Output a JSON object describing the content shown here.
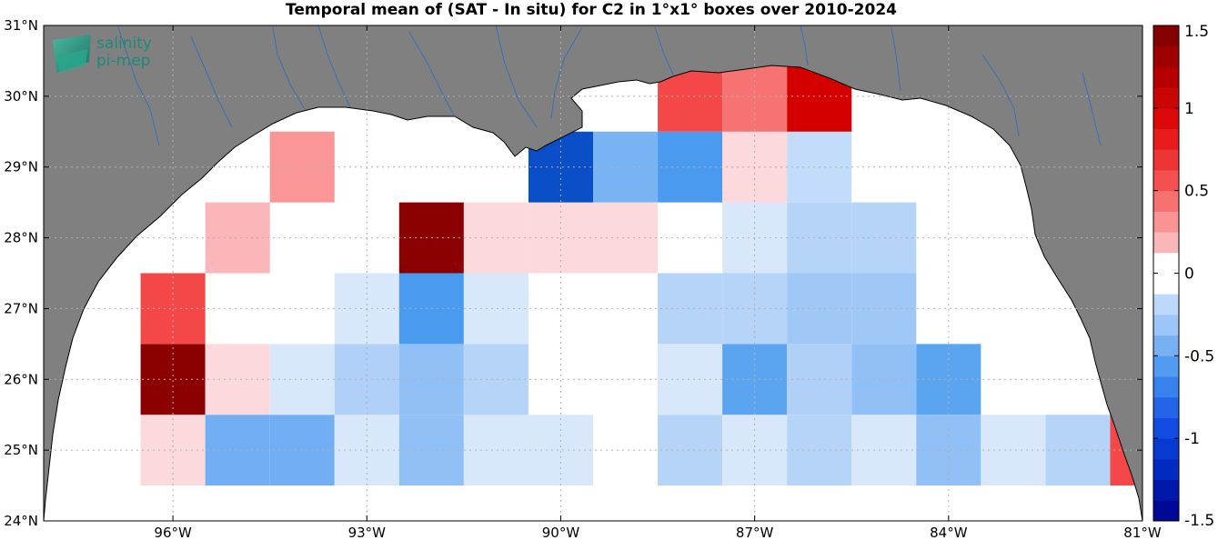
{
  "title": "Temporal mean of (SAT - In situ) for C2 in 1°x1° boxes over 2010-2024",
  "logo": {
    "line1": "salinity",
    "line2": "pi-mep"
  },
  "axes": {
    "lon_range": [
      -98,
      -81
    ],
    "lat_range": [
      24,
      31
    ],
    "x_ticks": [
      {
        "value": -96,
        "label": "96°W"
      },
      {
        "value": -93,
        "label": "93°W"
      },
      {
        "value": -90,
        "label": "90°W"
      },
      {
        "value": -87,
        "label": "87°W"
      },
      {
        "value": -84,
        "label": "84°W"
      },
      {
        "value": -81,
        "label": "81°W"
      }
    ],
    "y_ticks": [
      {
        "value": 24,
        "label": "24°N"
      },
      {
        "value": 25,
        "label": "25°N"
      },
      {
        "value": 26,
        "label": "26°N"
      },
      {
        "value": 27,
        "label": "27°N"
      },
      {
        "value": 28,
        "label": "28°N"
      },
      {
        "value": 29,
        "label": "29°N"
      },
      {
        "value": 30,
        "label": "30°N"
      },
      {
        "value": 31,
        "label": "31°N"
      }
    ]
  },
  "colorbar": {
    "range": [
      -1.5,
      1.5
    ],
    "ticks": [
      {
        "value": 1.5,
        "label": "1.5"
      },
      {
        "value": 1,
        "label": "1"
      },
      {
        "value": 0.5,
        "label": "0.5"
      },
      {
        "value": 0,
        "label": "0"
      },
      {
        "value": -0.5,
        "label": "-0.5"
      },
      {
        "value": -1,
        "label": "-1"
      },
      {
        "value": -1.5,
        "label": "-1.5"
      }
    ]
  },
  "colors": {
    "land": "#808080",
    "river": "#3a6fb5",
    "ocean": "#ffffff"
  },
  "cells": [
    {
      "lon": -96,
      "lat": 25,
      "color": "#fcd9dc"
    },
    {
      "lon": -95,
      "lat": 25,
      "color": "#71aef3"
    },
    {
      "lon": -94,
      "lat": 25,
      "color": "#71aef3"
    },
    {
      "lon": -93,
      "lat": 25,
      "color": "#d8e8fa"
    },
    {
      "lon": -92,
      "lat": 25,
      "color": "#90c0f6"
    },
    {
      "lon": -91,
      "lat": 25,
      "color": "#d8e8fa"
    },
    {
      "lon": -90,
      "lat": 25,
      "color": "#d8e8fa"
    },
    {
      "lon": -88,
      "lat": 25,
      "color": "#b6d4f8"
    },
    {
      "lon": -87,
      "lat": 25,
      "color": "#d8e8fa"
    },
    {
      "lon": -86,
      "lat": 25,
      "color": "#b6d4f8"
    },
    {
      "lon": -85,
      "lat": 25,
      "color": "#d8e8fa"
    },
    {
      "lon": -84,
      "lat": 25,
      "color": "#90c0f6"
    },
    {
      "lon": -83,
      "lat": 25,
      "color": "#d8e8fa"
    },
    {
      "lon": -82,
      "lat": 25,
      "color": "#b6d4f8"
    },
    {
      "lon": -81,
      "lat": 25,
      "color": "#f44848"
    },
    {
      "lon": -96,
      "lat": 26,
      "color": "#8b0000"
    },
    {
      "lon": -95,
      "lat": 26,
      "color": "#fcd9dc"
    },
    {
      "lon": -94,
      "lat": 26,
      "color": "#d8e8fa"
    },
    {
      "lon": -93,
      "lat": 26,
      "color": "#b0d0f8"
    },
    {
      "lon": -92,
      "lat": 26,
      "color": "#90c0f6"
    },
    {
      "lon": -91,
      "lat": 26,
      "color": "#b6d4f8"
    },
    {
      "lon": -88,
      "lat": 26,
      "color": "#d8e8fa"
    },
    {
      "lon": -87,
      "lat": 26,
      "color": "#5ba4f0"
    },
    {
      "lon": -86,
      "lat": 26,
      "color": "#b0d0f8"
    },
    {
      "lon": -85,
      "lat": 26,
      "color": "#90c0f6"
    },
    {
      "lon": -84,
      "lat": 26,
      "color": "#5ba4f0"
    },
    {
      "lon": -96,
      "lat": 27,
      "color": "#f44848"
    },
    {
      "lon": -93,
      "lat": 27,
      "color": "#d8e8fa"
    },
    {
      "lon": -92,
      "lat": 27,
      "color": "#4a9bf0"
    },
    {
      "lon": -91,
      "lat": 27,
      "color": "#d8e8fa"
    },
    {
      "lon": -88,
      "lat": 27,
      "color": "#b6d4f8"
    },
    {
      "lon": -87,
      "lat": 27,
      "color": "#b6d4f8"
    },
    {
      "lon": -86,
      "lat": 27,
      "color": "#a0c8f6"
    },
    {
      "lon": -85,
      "lat": 27,
      "color": "#a0c8f6"
    },
    {
      "lon": -95,
      "lat": 28,
      "color": "#fbb6ba"
    },
    {
      "lon": -92,
      "lat": 28,
      "color": "#8b0000"
    },
    {
      "lon": -91,
      "lat": 28,
      "color": "#fcd9dc"
    },
    {
      "lon": -90,
      "lat": 28,
      "color": "#fcd9dc"
    },
    {
      "lon": -89,
      "lat": 28,
      "color": "#fcd9dc"
    },
    {
      "lon": -87,
      "lat": 28,
      "color": "#d8e8fa"
    },
    {
      "lon": -86,
      "lat": 28,
      "color": "#b6d4f8"
    },
    {
      "lon": -85,
      "lat": 28,
      "color": "#b6d4f8"
    },
    {
      "lon": -94,
      "lat": 29,
      "color": "#fb9696"
    },
    {
      "lon": -90,
      "lat": 29,
      "color": "#0a4ec8"
    },
    {
      "lon": -89,
      "lat": 29,
      "color": "#78b4f4"
    },
    {
      "lon": -88,
      "lat": 29,
      "color": "#4a9bf0"
    },
    {
      "lon": -87,
      "lat": 29,
      "color": "#fcd9dc"
    },
    {
      "lon": -86,
      "lat": 29,
      "color": "#c2dcf9"
    },
    {
      "lon": -88,
      "lat": 30,
      "color": "#f44848"
    },
    {
      "lon": -87,
      "lat": 30,
      "color": "#f77272"
    },
    {
      "lon": -86,
      "lat": 30,
      "color": "#d40000"
    }
  ]
}
